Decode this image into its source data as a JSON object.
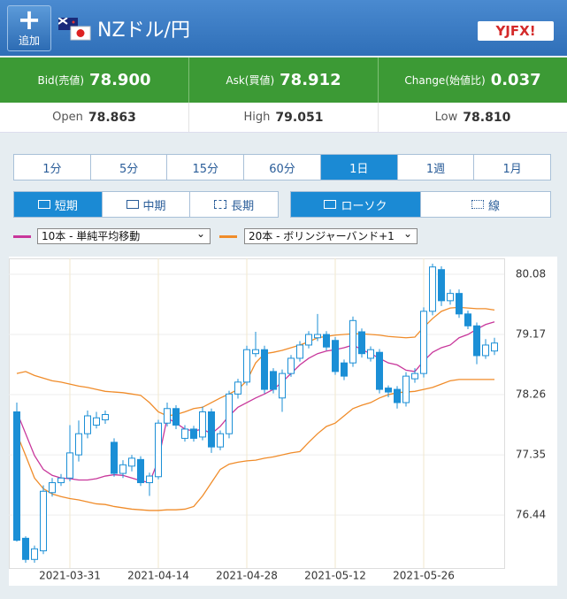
{
  "header": {
    "add_button": "追加",
    "title": "NZドル/円",
    "logo": "YJFX!"
  },
  "quotes": [
    {
      "label": "Bid(売値)",
      "value": "78.900"
    },
    {
      "label": "Ask(買値)",
      "value": "78.912"
    },
    {
      "label": "Change(始値比)",
      "value": "0.037"
    }
  ],
  "stats": [
    {
      "label": "Open",
      "value": "78.863"
    },
    {
      "label": "High",
      "value": "79.051"
    },
    {
      "label": "Low",
      "value": "78.810"
    }
  ],
  "timeframes": {
    "options": [
      "1分",
      "5分",
      "15分",
      "60分",
      "1日",
      "1週",
      "1月"
    ],
    "selected": 4
  },
  "periods": {
    "options": [
      "短期",
      "中期",
      "長期"
    ],
    "selected": 0
  },
  "chart_styles": {
    "options": [
      "ローソク",
      "線"
    ],
    "selected": 0
  },
  "chart_data": {
    "type": "candlestick",
    "categories": [
      null,
      null,
      null,
      null,
      null,
      null,
      "2021-03-31",
      null,
      null,
      null,
      null,
      null,
      null,
      null,
      null,
      null,
      "2021-04-14",
      null,
      null,
      null,
      null,
      null,
      null,
      null,
      null,
      null,
      "2021-04-28",
      null,
      null,
      null,
      null,
      null,
      null,
      null,
      null,
      null,
      "2021-05-12",
      null,
      null,
      null,
      null,
      null,
      null,
      null,
      null,
      null,
      "2021-05-26",
      null,
      null,
      null,
      null,
      null,
      null,
      null,
      null
    ],
    "candles": {
      "color_up": "#ffffff",
      "color_down": "#1b8fd6",
      "open": [
        78.0,
        76.09,
        75.77,
        75.9,
        76.78,
        76.93,
        77.0,
        77.35,
        77.67,
        77.8,
        77.88,
        77.54,
        77.07,
        77.18,
        77.28,
        76.93,
        77.02,
        77.83,
        78.05,
        77.6,
        77.74,
        77.62,
        78.0,
        77.47,
        77.67,
        78.27,
        78.45,
        78.88,
        78.94,
        78.61,
        78.21,
        78.58,
        78.81,
        79.01,
        79.12,
        79.17,
        79.08,
        78.74,
        78.74,
        79.21,
        78.81,
        78.9,
        78.36,
        78.34,
        78.14,
        78.5,
        78.58,
        79.52,
        80.15,
        79.68,
        79.79,
        79.48,
        79.3,
        78.85,
        78.92
      ],
      "high": [
        78.14,
        76.12,
        75.98,
        76.89,
        77.0,
        77.06,
        77.8,
        77.87,
        78.02,
        78.0,
        78.02,
        77.6,
        77.27,
        77.35,
        77.33,
        77.08,
        77.88,
        78.14,
        78.1,
        77.8,
        77.79,
        78.08,
        78.05,
        77.72,
        78.32,
        78.5,
        79.0,
        79.21,
        79.0,
        78.66,
        78.64,
        78.86,
        79.07,
        79.22,
        79.48,
        79.22,
        79.13,
        78.79,
        79.44,
        79.26,
        78.99,
        78.95,
        78.4,
        78.39,
        78.6,
        78.66,
        79.58,
        80.24,
        80.2,
        79.85,
        79.85,
        79.53,
        79.35,
        79.1,
        79.12
      ],
      "low": [
        76.04,
        75.72,
        75.72,
        75.85,
        76.72,
        76.88,
        76.95,
        77.25,
        77.6,
        77.75,
        77.82,
        77.02,
        77.0,
        77.1,
        76.88,
        76.73,
        76.98,
        77.78,
        77.74,
        77.55,
        77.55,
        77.57,
        77.38,
        77.42,
        77.6,
        78.2,
        78.4,
        78.83,
        78.28,
        78.28,
        78.0,
        78.53,
        78.76,
        78.96,
        79.07,
        78.93,
        78.56,
        78.48,
        78.68,
        78.82,
        78.76,
        78.28,
        78.22,
        78.05,
        78.08,
        78.44,
        78.52,
        79.46,
        79.6,
        79.62,
        79.42,
        79.25,
        78.72,
        78.8,
        78.86
      ],
      "close": [
        76.06,
        75.77,
        75.93,
        76.8,
        76.93,
        77.0,
        77.38,
        77.67,
        77.94,
        77.91,
        77.96,
        77.07,
        77.2,
        77.3,
        76.93,
        77.03,
        77.83,
        78.05,
        77.8,
        77.74,
        77.6,
        78.0,
        77.47,
        77.67,
        78.27,
        78.45,
        78.94,
        78.94,
        78.34,
        78.34,
        78.58,
        78.81,
        79.01,
        79.17,
        79.17,
        78.98,
        78.61,
        78.54,
        79.38,
        78.88,
        78.94,
        78.34,
        78.3,
        78.14,
        78.54,
        78.58,
        79.52,
        80.19,
        79.68,
        79.79,
        79.48,
        79.3,
        78.85,
        79.01,
        79.04
      ]
    },
    "series": [
      {
        "name": "10本 - 単純平均移動",
        "color": "#c8379b",
        "values": [
          78.0,
          77.67,
          77.34,
          77.13,
          77.04,
          77.0,
          76.99,
          76.97,
          76.97,
          76.99,
          77.03,
          77.05,
          77.04,
          77.0,
          76.96,
          76.93,
          77.27,
          77.91,
          77.83,
          77.74,
          77.71,
          77.74,
          77.67,
          77.78,
          77.94,
          78.07,
          78.14,
          78.21,
          78.27,
          78.34,
          78.45,
          78.58,
          78.71,
          78.81,
          78.88,
          78.92,
          78.94,
          78.97,
          79.01,
          78.94,
          78.88,
          78.81,
          78.74,
          78.71,
          78.63,
          78.61,
          78.77,
          78.9,
          78.97,
          79.01,
          79.12,
          79.17,
          79.25,
          79.32,
          79.36
        ]
      },
      {
        "name": "20本 - ボリンジャーバンド+1",
        "color": "#f08c2a",
        "upper": [
          78.58,
          78.61,
          78.55,
          78.51,
          78.47,
          78.45,
          78.42,
          78.39,
          78.37,
          78.34,
          78.31,
          78.3,
          78.29,
          78.27,
          78.25,
          78.14,
          78.0,
          77.94,
          77.96,
          78.0,
          78.05,
          78.07,
          78.14,
          78.21,
          78.27,
          78.34,
          78.47,
          78.74,
          78.88,
          78.9,
          78.93,
          78.97,
          79.01,
          79.06,
          79.12,
          79.14,
          79.16,
          79.17,
          79.18,
          79.18,
          79.17,
          79.16,
          79.14,
          79.13,
          79.12,
          79.13,
          79.28,
          79.41,
          79.52,
          79.57,
          79.58,
          79.57,
          79.56,
          79.56,
          79.54
        ],
        "lower": [
          77.67,
          77.34,
          77.0,
          76.84,
          76.76,
          76.72,
          76.69,
          76.67,
          76.64,
          76.61,
          76.6,
          76.57,
          76.55,
          76.53,
          76.52,
          76.51,
          76.51,
          76.52,
          76.52,
          76.53,
          76.57,
          76.73,
          76.93,
          77.13,
          77.21,
          77.24,
          77.26,
          77.27,
          77.3,
          77.32,
          77.35,
          77.38,
          77.4,
          77.54,
          77.67,
          77.78,
          77.83,
          77.94,
          78.05,
          78.1,
          78.14,
          78.21,
          78.26,
          78.29,
          78.3,
          78.31,
          78.34,
          78.37,
          78.42,
          78.47,
          78.49,
          78.49,
          78.49,
          78.49,
          78.49
        ]
      }
    ],
    "ylim": [
      75.64,
      80.32
    ],
    "yticks": [
      76.44,
      77.35,
      78.26,
      79.17,
      80.08
    ],
    "grid": true
  }
}
